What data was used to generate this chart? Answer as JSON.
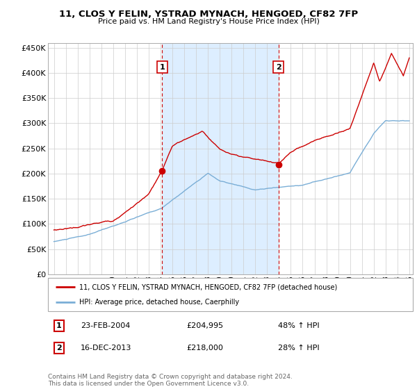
{
  "title": "11, CLOS Y FELIN, YSTRAD MYNACH, HENGOED, CF82 7FP",
  "subtitle": "Price paid vs. HM Land Registry's House Price Index (HPI)",
  "legend_line1": "11, CLOS Y FELIN, YSTRAD MYNACH, HENGOED, CF82 7FP (detached house)",
  "legend_line2": "HPI: Average price, detached house, Caerphilly",
  "annotation1_date": "23-FEB-2004",
  "annotation1_price": "£204,995",
  "annotation1_hpi": "48% ↑ HPI",
  "annotation2_date": "16-DEC-2013",
  "annotation2_price": "£218,000",
  "annotation2_hpi": "28% ↑ HPI",
  "footnote": "Contains HM Land Registry data © Crown copyright and database right 2024.\nThis data is licensed under the Open Government Licence v3.0.",
  "red_color": "#cc0000",
  "blue_color": "#7aaed6",
  "shade_color": "#ddeeff",
  "annotation_box_color": "#cc0000",
  "ylim": [
    0,
    460000
  ],
  "yticks": [
    0,
    50000,
    100000,
    150000,
    200000,
    250000,
    300000,
    350000,
    400000,
    450000
  ],
  "ytick_labels": [
    "£0",
    "£50K",
    "£100K",
    "£150K",
    "£200K",
    "£250K",
    "£300K",
    "£350K",
    "£400K",
    "£450K"
  ],
  "purchase1_x": 2004.14,
  "purchase1_y": 204995,
  "purchase2_x": 2013.96,
  "purchase2_y": 218000,
  "vline1_x": 2004.14,
  "vline2_x": 2013.96,
  "xmin": 1995,
  "xmax": 2025
}
